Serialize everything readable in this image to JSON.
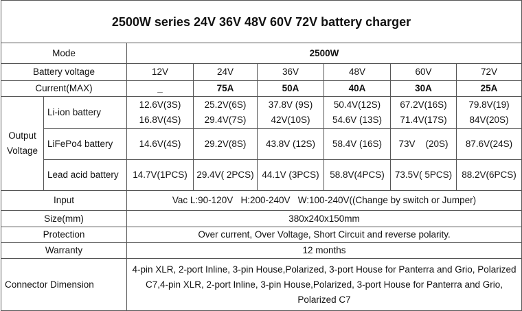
{
  "title": "2500W series 24V 36V 48V 60V 72V battery charger",
  "mode": {
    "label": "Mode",
    "value": "2500W"
  },
  "battery_voltage": {
    "label": "Battery voltage",
    "values": [
      "12V",
      "24V",
      "36V",
      "48V",
      "60V",
      "72V"
    ]
  },
  "current": {
    "label": "Current(MAX)",
    "values": [
      "_",
      "75A",
      "50A",
      "40A",
      "30A",
      "25A"
    ]
  },
  "output_voltage": {
    "label": "Output Voltage",
    "rows": [
      {
        "label": "Li-ion battery",
        "values": [
          [
            "12.6V(3S)",
            "16.8V(4S)"
          ],
          [
            "25.2V(6S)",
            "29.4V(7S)"
          ],
          [
            "37.8V (9S)",
            "42V(10S)"
          ],
          [
            "50.4V(12S)",
            "54.6V (13S)"
          ],
          [
            "67.2V(16S)",
            "71.4V(17S)"
          ],
          [
            "79.8V(19)",
            "84V(20S)"
          ]
        ]
      },
      {
        "label": "LiFePo4 battery",
        "values": [
          [
            "14.6V(4S)"
          ],
          [
            "29.2V(8S)"
          ],
          [
            "43.8V (12S)"
          ],
          [
            "58.4V (16S)"
          ],
          [
            "73V    (20S)"
          ],
          [
            "87.6V(24S)"
          ]
        ]
      },
      {
        "label": "Lead acid battery",
        "values": [
          [
            "14.7V(1PCS)"
          ],
          [
            "29.4V( 2PCS)"
          ],
          [
            "44.1V (3PCS)"
          ],
          [
            "58.8V(4PCS)"
          ],
          [
            "73.5V( 5PCS)"
          ],
          [
            "88.2V(6PCS)"
          ]
        ]
      }
    ]
  },
  "specs": [
    {
      "label": "Input",
      "value": "Vac L:90-120V   H:200-240V   W:100-240V((Change by switch or Jumper)"
    },
    {
      "label": "Size(mm)",
      "value": "380x240x150mm"
    },
    {
      "label": "Protection",
      "value": "Over current, Over Voltage, Short Circuit and reverse polarity."
    },
    {
      "label": "Warranty",
      "value": "12 months"
    },
    {
      "label": "Connector Dimension",
      "value": "4-pin XLR, 2-port Inline, 3-pin House,Polarized, 3-port House for Panterra and Grio, Polarized C7,4-pin XLR, 2-port Inline, 3-pin House,Polarized, 3-port House for Panterra and Grio, Polarized C7"
    }
  ]
}
